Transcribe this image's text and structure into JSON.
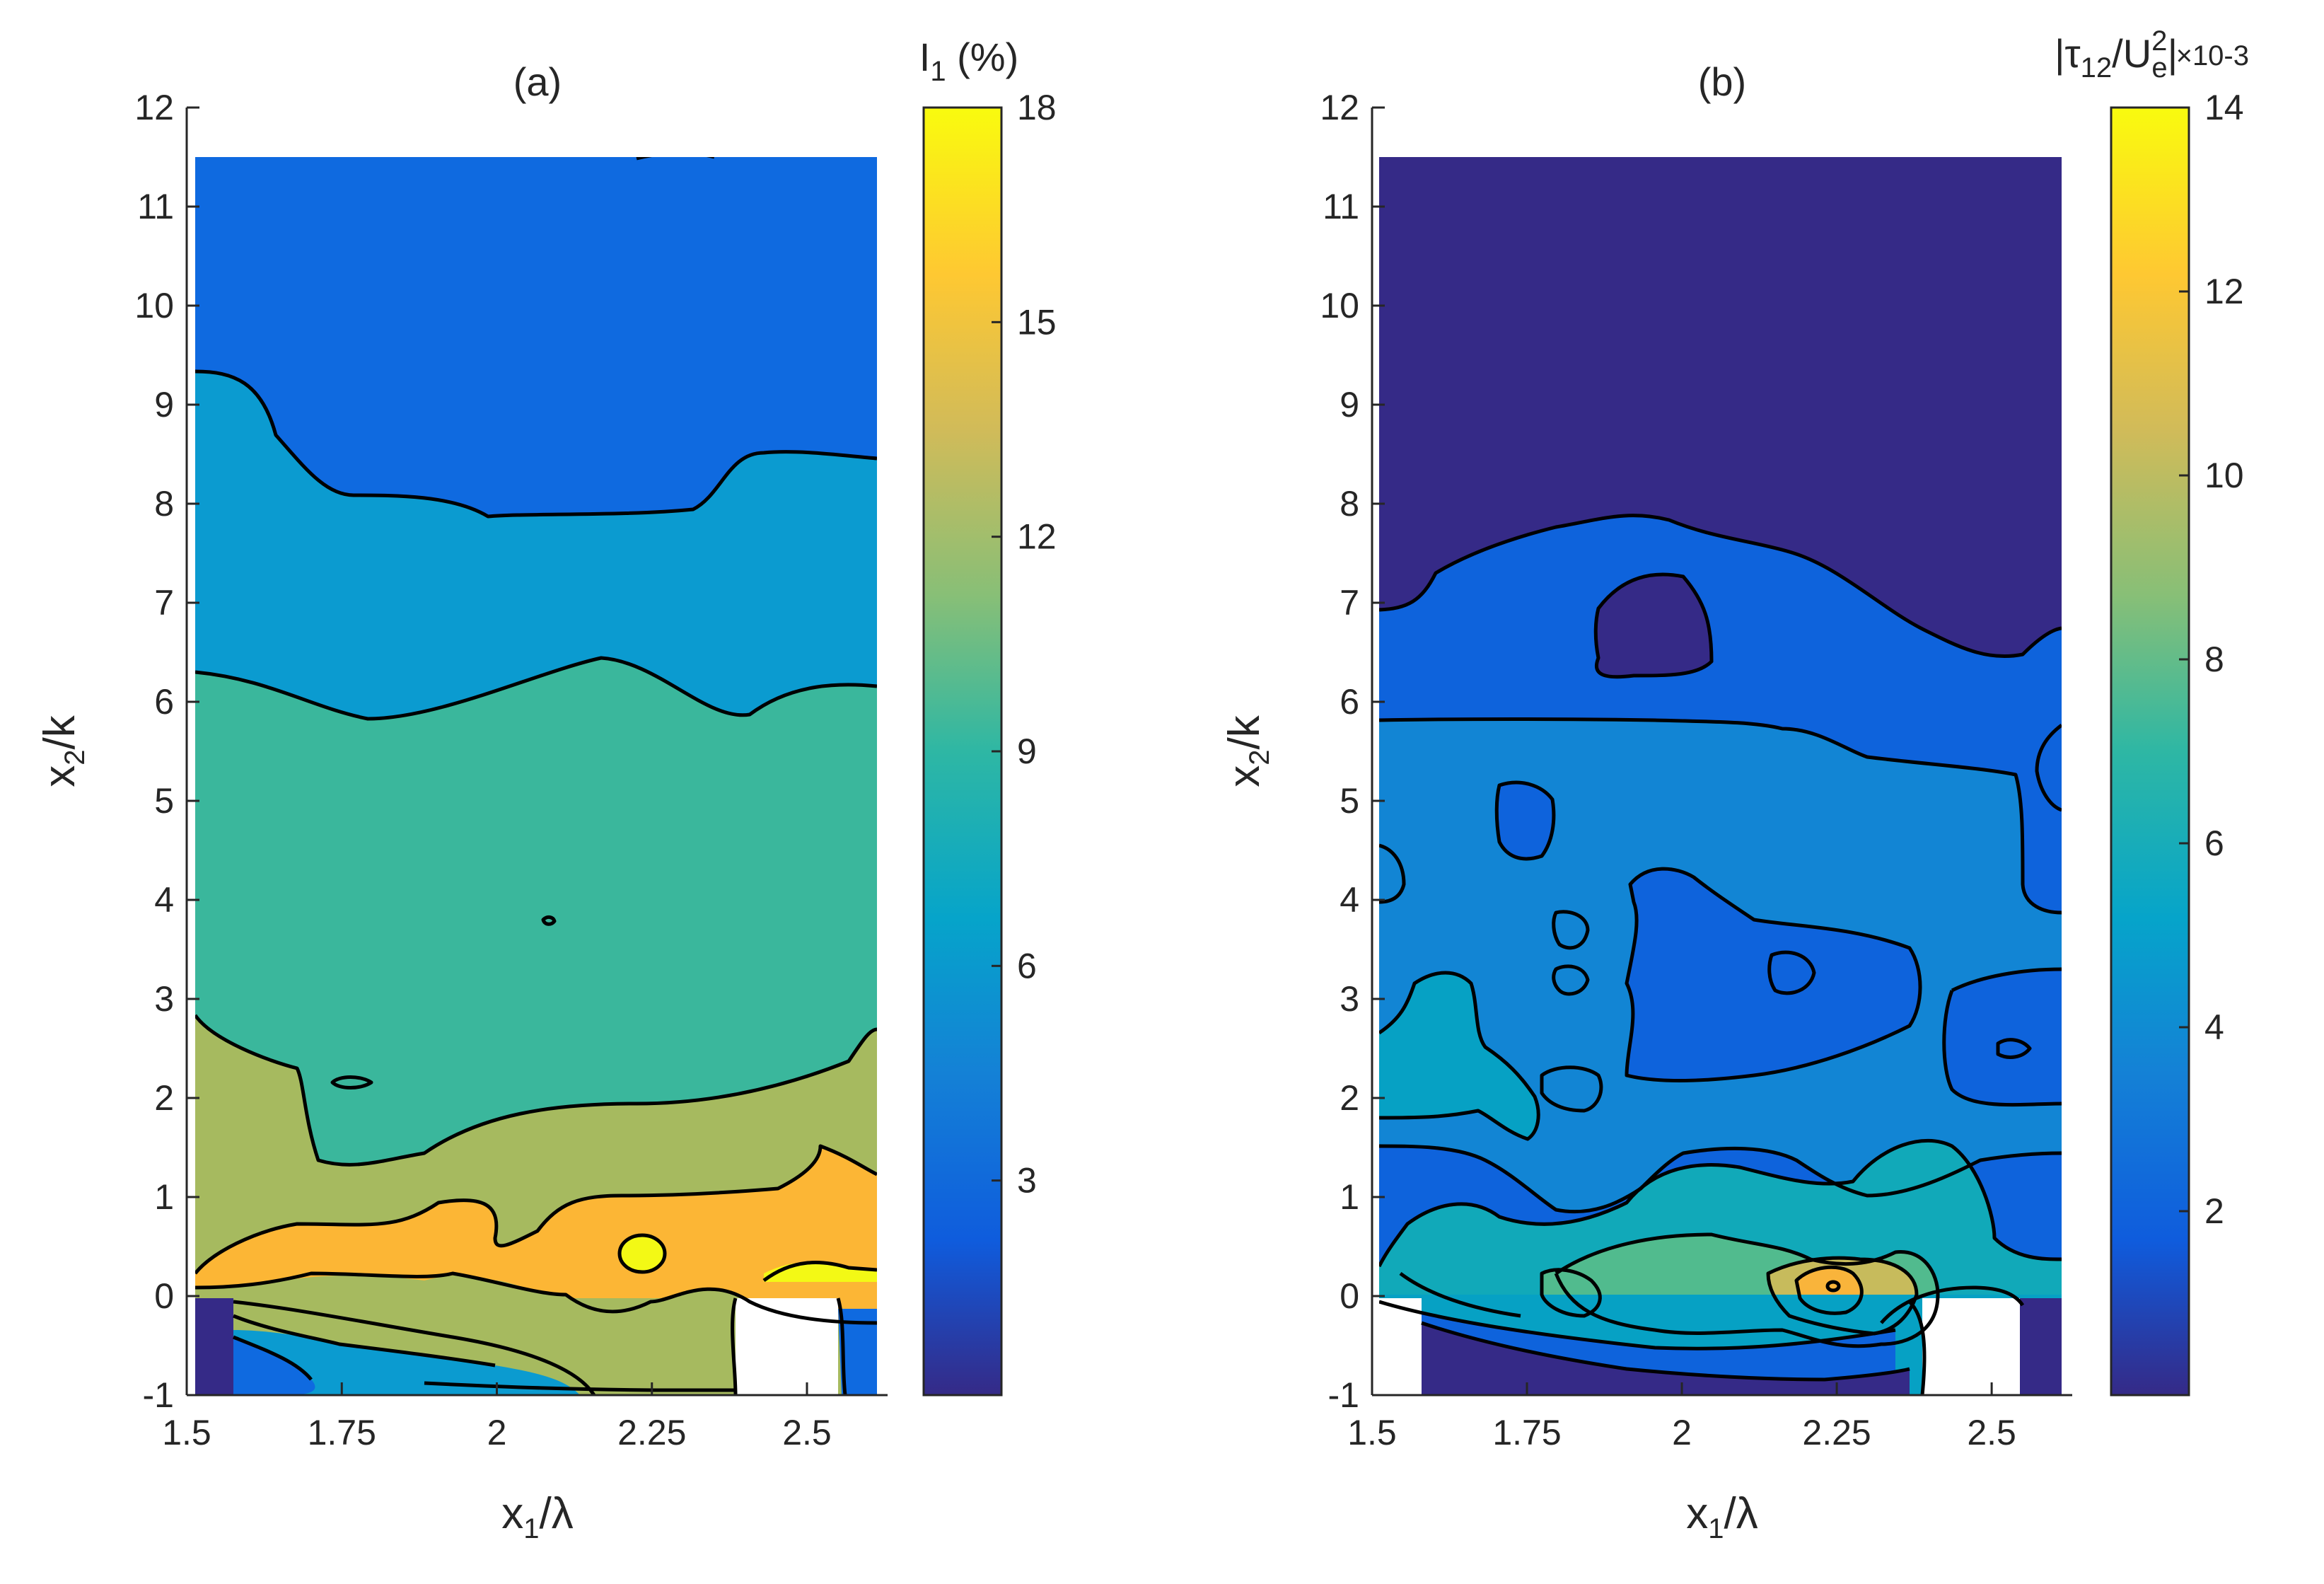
{
  "chart_data": [
    {
      "type": "contour",
      "panel_label": "(a)",
      "xlabel": "x1/λ",
      "ylabel": "x2/k",
      "xlim": [
        1.5,
        2.63
      ],
      "ylim": [
        -1,
        12
      ],
      "xticks": [
        "1.5",
        "1.75",
        "2",
        "2.25",
        "2.5"
      ],
      "yticks": [
        "-1",
        "0",
        "1",
        "2",
        "3",
        "4",
        "5",
        "6",
        "7",
        "8",
        "9",
        "10",
        "11",
        "12"
      ],
      "data_extent": {
        "x": [
          1.52,
          2.62
        ],
        "y": [
          -1,
          11.5
        ]
      },
      "colorbar": {
        "label": "I1 (%)",
        "min": 0,
        "max": 18,
        "ticks": [
          "3",
          "6",
          "9",
          "12",
          "15",
          "18"
        ]
      },
      "contour_levels": [
        {
          "level": "3-6 %",
          "y_range": [
            8.0,
            11.5
          ]
        },
        {
          "level": "6-9 %",
          "y_range": [
            6.2,
            9.3
          ]
        },
        {
          "level": "9-12 %",
          "y_range": [
            2.2,
            6.3
          ]
        },
        {
          "level": "12-15 %",
          "y_range": [
            0.4,
            2.8
          ]
        },
        {
          "level": "15-18 %",
          "y_range": [
            0.1,
            1.0
          ]
        }
      ],
      "local_max": {
        "x": 2.25,
        "y": 0.4,
        "value": "> 15 %"
      }
    },
    {
      "type": "contour",
      "panel_label": "(b)",
      "xlabel": "x1/λ",
      "ylabel": "x2/k",
      "xlim": [
        1.5,
        2.63
      ],
      "ylim": [
        -1,
        12
      ],
      "xticks": [
        "1.5",
        "1.75",
        "2",
        "2.25",
        "2.5"
      ],
      "yticks": [
        "-1",
        "0",
        "1",
        "2",
        "3",
        "4",
        "5",
        "6",
        "7",
        "8",
        "9",
        "10",
        "11",
        "12"
      ],
      "data_extent": {
        "x": [
          1.52,
          2.62
        ],
        "y": [
          -1,
          11.5
        ]
      },
      "colorbar": {
        "label": "|τ12/U²e|",
        "exponent": "×10-3",
        "min": 0,
        "max": 14,
        "ticks": [
          "2",
          "4",
          "6",
          "8",
          "10",
          "12",
          "14"
        ]
      },
      "contour_levels": [
        {
          "level": "0-2",
          "y_range": [
            7.0,
            11.5
          ]
        },
        {
          "level": "2-4",
          "y_range": [
            2.0,
            7.5
          ]
        },
        {
          "level": "4-6",
          "y_range": [
            0.0,
            5.5
          ]
        },
        {
          "level": "6-8",
          "y_range": [
            0.0,
            1.5
          ]
        },
        {
          "level": "8-10",
          "y_range": [
            0.0,
            1.0
          ]
        },
        {
          "level": "10-12",
          "y_range": [
            0.0,
            0.6
          ]
        }
      ],
      "local_max": {
        "x": 2.28,
        "y": 0.2,
        "value": "≈ 12"
      }
    }
  ]
}
